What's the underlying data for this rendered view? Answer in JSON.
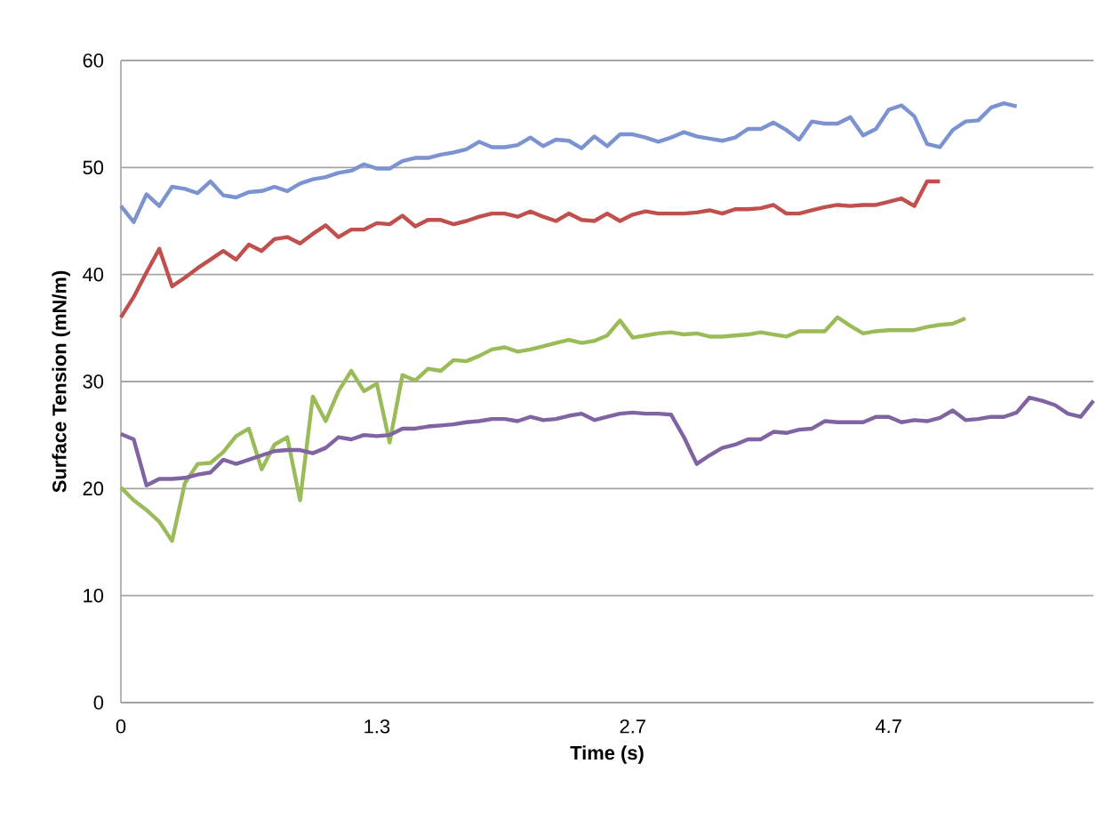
{
  "chart_data": {
    "type": "line",
    "xlabel": "Time (s)",
    "ylabel": "Surface Tension (mN/m)",
    "categories": [
      "0",
      null,
      null,
      null,
      null,
      null,
      null,
      null,
      null,
      null,
      null,
      null,
      null,
      null,
      null,
      null,
      null,
      null,
      null,
      null,
      "1.3",
      null,
      null,
      null,
      null,
      null,
      null,
      null,
      null,
      null,
      null,
      null,
      null,
      null,
      null,
      null,
      null,
      null,
      null,
      null,
      "2.7",
      null,
      null,
      null,
      null,
      null,
      null,
      null,
      null,
      null,
      null,
      null,
      null,
      null,
      null,
      null,
      null,
      null,
      null,
      null,
      "4.7",
      null,
      null,
      null,
      null,
      null,
      null,
      null,
      null,
      null,
      null,
      null,
      null,
      null,
      null,
      null,
      null
    ],
    "ylim": [
      0,
      60
    ],
    "yticks": [
      0,
      10,
      20,
      30,
      40,
      50,
      60
    ],
    "grid": "y",
    "series": [
      {
        "color": "#7b93d1",
        "values": [
          46.4,
          44.9,
          47.5,
          46.4,
          48.2,
          48.0,
          47.6,
          48.7,
          47.4,
          47.2,
          47.7,
          47.8,
          48.2,
          47.8,
          48.5,
          48.9,
          49.1,
          49.5,
          49.7,
          50.3,
          49.9,
          49.9,
          50.6,
          50.9,
          50.9,
          51.2,
          51.4,
          51.7,
          52.4,
          51.9,
          51.9,
          52.1,
          52.8,
          52.0,
          52.6,
          52.5,
          51.8,
          52.9,
          52.0,
          53.1,
          53.1,
          52.8,
          52.4,
          52.8,
          53.3,
          52.9,
          52.7,
          52.5,
          52.8,
          53.6,
          53.6,
          54.2,
          53.5,
          52.6,
          54.3,
          54.1,
          54.1,
          54.7,
          53.0,
          53.6,
          55.4,
          55.8,
          54.8,
          52.2,
          51.9,
          53.5,
          54.3,
          54.4,
          55.6,
          56.0,
          55.7,
          null,
          null,
          null,
          null,
          null,
          null
        ]
      },
      {
        "color": "#c0504d",
        "values": [
          36.0,
          37.9,
          40.2,
          42.4,
          38.9,
          39.7,
          40.6,
          41.4,
          42.2,
          41.4,
          42.8,
          42.2,
          43.3,
          43.5,
          42.9,
          43.8,
          44.6,
          43.5,
          44.2,
          44.2,
          44.8,
          44.7,
          45.5,
          44.5,
          45.1,
          45.1,
          44.7,
          45.0,
          45.4,
          45.7,
          45.7,
          45.4,
          45.9,
          45.4,
          45.0,
          45.7,
          45.1,
          45.0,
          45.7,
          45.0,
          45.6,
          45.9,
          45.7,
          45.7,
          45.7,
          45.8,
          46.0,
          45.7,
          46.1,
          46.1,
          46.2,
          46.5,
          45.7,
          45.7,
          46.0,
          46.3,
          46.5,
          46.4,
          46.5,
          46.5,
          46.8,
          47.1,
          46.4,
          48.7,
          48.7,
          null,
          null,
          null,
          null,
          null,
          null,
          null,
          null,
          null,
          null,
          null,
          null
        ]
      },
      {
        "color": "#9bbb59",
        "values": [
          20.1,
          18.9,
          18.0,
          16.9,
          15.1,
          20.5,
          22.3,
          22.4,
          23.4,
          24.9,
          25.6,
          21.8,
          24.1,
          24.8,
          18.9,
          28.6,
          26.3,
          29.1,
          31.0,
          29.1,
          29.8,
          24.3,
          30.6,
          30.1,
          31.2,
          31.0,
          32.0,
          31.9,
          32.4,
          33.0,
          33.2,
          32.8,
          33.0,
          33.3,
          33.6,
          33.9,
          33.6,
          33.8,
          34.3,
          35.7,
          34.1,
          34.3,
          34.5,
          34.6,
          34.4,
          34.5,
          34.2,
          34.2,
          34.3,
          34.4,
          34.6,
          34.4,
          34.2,
          34.7,
          34.7,
          34.7,
          36.0,
          35.2,
          34.5,
          34.7,
          34.8,
          34.8,
          34.8,
          35.1,
          35.3,
          35.4,
          35.9,
          null,
          null,
          null,
          null,
          null,
          null,
          null,
          null,
          null,
          null
        ]
      },
      {
        "color": "#8064a2",
        "values": [
          25.1,
          24.6,
          20.3,
          20.9,
          20.9,
          21.0,
          21.3,
          21.5,
          22.7,
          22.3,
          22.7,
          23.1,
          23.5,
          23.6,
          23.6,
          23.3,
          23.8,
          24.8,
          24.6,
          25.0,
          24.9,
          25.0,
          25.6,
          25.6,
          25.8,
          25.9,
          26.0,
          26.2,
          26.3,
          26.5,
          26.5,
          26.3,
          26.7,
          26.4,
          26.5,
          26.8,
          27.0,
          26.4,
          26.7,
          27.0,
          27.1,
          27.0,
          27.0,
          26.9,
          24.8,
          22.3,
          23.1,
          23.8,
          24.1,
          24.6,
          24.6,
          25.3,
          25.2,
          25.5,
          25.6,
          26.3,
          26.2,
          26.2,
          26.2,
          26.7,
          26.7,
          26.2,
          26.4,
          26.3,
          26.6,
          27.3,
          26.4,
          26.5,
          26.7,
          26.7,
          27.1,
          28.5,
          28.2,
          27.8,
          27.0,
          26.7,
          28.2
        ]
      }
    ]
  }
}
